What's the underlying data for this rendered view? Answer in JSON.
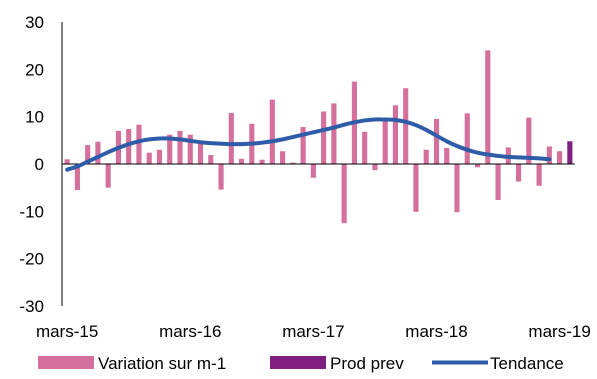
{
  "chart_data": {
    "type": "bar",
    "title": "",
    "xlabel": "",
    "ylabel": "",
    "ylim": [
      -30,
      30
    ],
    "yticks": [
      -30,
      -20,
      -10,
      0,
      10,
      20,
      30
    ],
    "x_tick_labels": [
      {
        "label": "mars-15",
        "index": 0
      },
      {
        "label": "mars-16",
        "index": 12
      },
      {
        "label": "mars-17",
        "index": 24
      },
      {
        "label": "mars-18",
        "index": 36
      },
      {
        "label": "mars-19",
        "index": 48
      }
    ],
    "grid": false,
    "legend_position": "bottom",
    "series": [
      {
        "name": "Variation sur m-1",
        "kind": "bar",
        "color": "#D4709B",
        "values": [
          1,
          -5.5,
          4,
          4.7,
          -5,
          7,
          7.4,
          8.3,
          2.4,
          3,
          6.2,
          7,
          6.2,
          4.4,
          1.9,
          -5.4,
          10.8,
          1.1,
          8.5,
          0.9,
          13.6,
          2.7,
          0.3,
          7.8,
          -2.9,
          11.1,
          12.8,
          -12.5,
          17.4,
          6.8,
          -1.3,
          9,
          12.4,
          16,
          -10.1,
          3,
          9.5,
          3.4,
          -10.2,
          10.7,
          -0.7,
          24,
          -7.6,
          3.5,
          -3.7,
          9.8,
          -4.6,
          3.7,
          2.7
        ]
      },
      {
        "name": "Prod prev",
        "kind": "bar",
        "color": "#7F1F7F",
        "values": [
          null,
          null,
          null,
          null,
          null,
          null,
          null,
          null,
          null,
          null,
          null,
          null,
          null,
          null,
          null,
          null,
          null,
          null,
          null,
          null,
          null,
          null,
          null,
          null,
          null,
          null,
          null,
          null,
          null,
          null,
          null,
          null,
          null,
          null,
          null,
          null,
          null,
          null,
          null,
          null,
          null,
          null,
          null,
          null,
          null,
          null,
          null,
          null,
          null,
          4.8
        ]
      },
      {
        "name": "Tendance",
        "kind": "line",
        "color": "#2E5CA8",
        "values": [
          -1.2,
          -0.5,
          0.5,
          1.5,
          2.5,
          3.4,
          4.2,
          4.8,
          5.2,
          5.4,
          5.4,
          5.2,
          4.9,
          4.6,
          4.4,
          4.3,
          4.2,
          4.2,
          4.3,
          4.5,
          4.8,
          5.2,
          5.7,
          6.2,
          6.7,
          7.2,
          7.7,
          8.3,
          8.8,
          9.2,
          9.4,
          9.4,
          9.3,
          8.9,
          8.2,
          7.2,
          6.0,
          4.8,
          3.8,
          3.0,
          2.4,
          2.0,
          1.7,
          1.5,
          1.4,
          1.3,
          1.2,
          1.0
        ]
      }
    ]
  }
}
